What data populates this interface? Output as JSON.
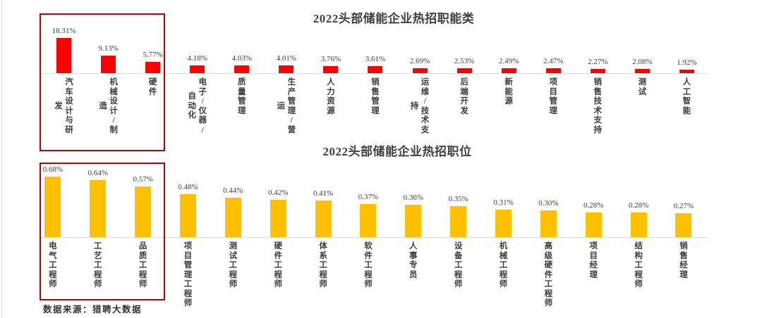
{
  "page": {
    "source_note": "数据来源：猎聘大数据",
    "background": "#ffffff",
    "page_edge_color": "#d8d8d8",
    "title_color": "#404040",
    "axis_color": "#d9d9d9",
    "highlight_box_color": "#c00000"
  },
  "chart_data": [
    {
      "type": "bar",
      "title": "2022头部储能企业热招职能类",
      "bar_color": "#fe0000",
      "xlabel": "",
      "ylabel": "",
      "ylim": [
        0,
        18.31
      ],
      "grid": false,
      "legend_position": "none",
      "categories": [
        "汽车设计与研发",
        "机械设计/制造",
        "硬件",
        "电子/仪器/自动化",
        "质量管理",
        "生产管理/营运",
        "人力资源",
        "销售管理",
        "运维/技术支持",
        "后端开发",
        "新能源",
        "项目管理",
        "销售技术支持",
        "测试",
        "人工智能"
      ],
      "values": [
        18.31,
        9.13,
        5.77,
        4.18,
        4.03,
        4.01,
        3.76,
        3.61,
        2.69,
        2.53,
        2.49,
        2.47,
        2.27,
        2.08,
        1.92
      ],
      "value_labels": [
        "18.31%",
        "9.13%",
        "5.77%",
        "4.18%",
        "4.03%",
        "4.01%",
        "3.76%",
        "3.61%",
        "2.69%",
        "2.53%",
        "2.49%",
        "2.47%",
        "2.27%",
        "2.08%",
        "1.92%"
      ]
    },
    {
      "type": "bar",
      "title": "2022头部储能企业热招职位",
      "bar_color": "#ffc000",
      "xlabel": "",
      "ylabel": "",
      "ylim": [
        0,
        0.68
      ],
      "grid": false,
      "legend_position": "none",
      "categories": [
        "电气工程师",
        "工艺工程师",
        "品质工程师",
        "项目管理工程师",
        "测试工程师",
        "硬件工程师",
        "体系工程师",
        "软件工程师",
        "人事专员",
        "设备工程师",
        "机械工程师",
        "高级硬件工程师",
        "项目经理",
        "结构工程师",
        "销售经理"
      ],
      "values": [
        0.68,
        0.64,
        0.57,
        0.48,
        0.44,
        0.42,
        0.41,
        0.37,
        0.36,
        0.35,
        0.31,
        0.3,
        0.28,
        0.28,
        0.27
      ],
      "value_labels": [
        "0.68%",
        "0.64%",
        "0.57%",
        "0.48%",
        "0.44%",
        "0.42%",
        "0.41%",
        "0.37%",
        "0.36%",
        "0.35%",
        "0.31%",
        "0.30%",
        "0.28%",
        "0.28%",
        "0.27%"
      ]
    }
  ]
}
